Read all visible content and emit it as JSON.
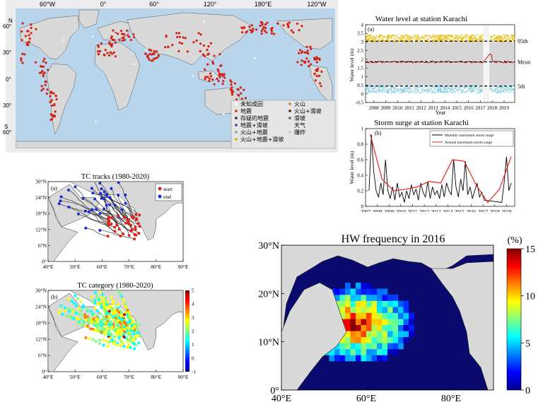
{
  "colors": {
    "ocean": "#b9d5ec",
    "land": "#d9d9d9",
    "dot": "#d62012",
    "line95": "#e8c21c",
    "line5": "#8fd2e4",
    "mean": "#c0191e",
    "annual": "#e0271c"
  },
  "world_map": {
    "top_ticks": [
      "60°W",
      "0°",
      "60°",
      "120°",
      "180°E",
      "120°W"
    ],
    "left_ticks": [
      "60°",
      "30°",
      "0°",
      "30°",
      "60°"
    ],
    "n_label": "N",
    "s_label": "S",
    "legend": [
      {
        "label": "未知成因",
        "color": "#f4f4f4"
      },
      {
        "label": "地震",
        "color": "#e0201a"
      },
      {
        "label": "存疑的地震",
        "color": "#2a2a2a"
      },
      {
        "label": "地震+滑坡",
        "color": "#3b3b9a"
      },
      {
        "label": "火山+地震",
        "color": "#999999"
      },
      {
        "label": "火山+地震+滑坡",
        "color": "#c9b000"
      },
      {
        "label": "火山",
        "color": "#c77d2a"
      },
      {
        "label": "火山+滑坡",
        "color": "#4b1d05"
      },
      {
        "label": "滑坡",
        "color": "#5b5b5b"
      },
      {
        "label": "天气",
        "color": "#f6d6d6"
      },
      {
        "label": "爆炸",
        "color": "#c7c7c7"
      }
    ]
  },
  "panels": {
    "water_title": "Water level at station Karachi",
    "surge_title": "Storm surge at station Karachi",
    "tc_tracks_title": "TC tracks (1980-2020)",
    "tc_cat_title": "TC category (1980-2020)",
    "hw_title": "HW frequency in 2016",
    "hw_unit": "(%)",
    "label_a": "(a)",
    "label_b": "(b)",
    "tc_legend_start": "start",
    "tc_legend_end": "end"
  },
  "chart_data": [
    {
      "type": "scatter",
      "title": "Water level at station Karachi",
      "xlabel": "Year",
      "ylabel": "Water level (m)",
      "x_ticks": [
        "2008",
        "2009",
        "2010",
        "2011",
        "2012",
        "2013",
        "2014",
        "2015",
        "2016",
        "2017",
        "2018",
        "2019"
      ],
      "y_ticks": [
        "-0.5",
        "0",
        "0.5",
        "1",
        "1.5",
        "2",
        "2.5",
        "3",
        "3.5",
        "4"
      ],
      "xlim": [
        2007.3,
        2019.9
      ],
      "ylim": [
        -0.5,
        4
      ],
      "reference_lines": [
        {
          "name": "95th",
          "value": 3.05
        },
        {
          "name": "Mean",
          "value": 1.85
        },
        {
          "name": "5th",
          "value": 0.45
        }
      ],
      "gap": [
        2017.25,
        2017.75
      ]
    },
    {
      "type": "line",
      "title": "Storm surge at station Karachi",
      "ylabel": "Water level (m)",
      "x_ticks": [
        "2007",
        "2008",
        "2009",
        "2010",
        "2011",
        "2012",
        "2013",
        "2014",
        "2015",
        "2016",
        "2017",
        "2018",
        "2019"
      ],
      "y_ticks": [
        "0",
        "0.2",
        "0.4",
        "0.6",
        "0.8",
        "1"
      ],
      "xlim": [
        2007,
        2019.7
      ],
      "ylim": [
        0,
        1
      ],
      "series": [
        {
          "name": "Monthly maximum storm surge",
          "x": [
            2007.3,
            2007.5,
            2007.7,
            2007.9,
            2008.1,
            2008.3,
            2008.5,
            2008.7,
            2008.9,
            2009.1,
            2009.3,
            2009.5,
            2009.7,
            2009.9,
            2010.1,
            2010.3,
            2010.5,
            2010.7,
            2010.9,
            2011.1,
            2011.3,
            2011.5,
            2011.7,
            2011.9,
            2012.1,
            2012.3,
            2012.5,
            2012.7,
            2012.9,
            2013.1,
            2013.3,
            2013.5,
            2013.7,
            2013.9,
            2014.1,
            2014.3,
            2014.5,
            2014.7,
            2014.9,
            2015.1,
            2015.3,
            2015.5,
            2015.7,
            2015.9,
            2016.1,
            2016.3,
            2016.5,
            2016.7,
            2016.9,
            2017.1,
            2018.6,
            2018.8,
            2019.0,
            2019.2,
            2019.4
          ],
          "values": [
            0.2,
            0.92,
            0.45,
            0.2,
            0.12,
            0.3,
            0.15,
            0.6,
            0.2,
            0.1,
            0.25,
            0.08,
            0.3,
            0.12,
            0.18,
            0.05,
            0.2,
            0.1,
            0.28,
            0.15,
            0.22,
            0.08,
            0.3,
            0.18,
            0.12,
            0.32,
            0.1,
            0.25,
            0.15,
            0.2,
            0.1,
            0.28,
            0.12,
            0.3,
            0.2,
            0.15,
            0.6,
            0.25,
            0.12,
            0.35,
            0.2,
            0.58,
            0.15,
            0.25,
            0.1,
            0.2,
            0.3,
            0.12,
            0.18,
            0.08,
            0.05,
            0.3,
            0.64,
            0.2,
            0.3
          ]
        },
        {
          "name": "Annual maximum storm surge",
          "x": [
            2007.4,
            2008.4,
            2009.4,
            2010.4,
            2011.4,
            2012.4,
            2013.4,
            2014.4,
            2015.4,
            2016.4,
            2017.4,
            2018.4,
            2019.4
          ],
          "values": [
            0.93,
            0.35,
            0.2,
            0.22,
            0.25,
            0.32,
            0.3,
            0.6,
            0.58,
            0.28,
            0.05,
            0.22,
            0.64
          ]
        }
      ]
    },
    {
      "type": "scatter",
      "title": "TC tracks (1980-2020)",
      "x_ticks": [
        "40°E",
        "50°E",
        "60°E",
        "70°E",
        "80°E",
        "90°E"
      ],
      "y_ticks": [
        "0°",
        "6°N",
        "12°N",
        "18°N",
        "24°N",
        "30°N"
      ],
      "xlim": [
        40,
        90
      ],
      "ylim": [
        0,
        30
      ],
      "series": [
        {
          "name": "start"
        },
        {
          "name": "end"
        }
      ]
    },
    {
      "type": "scatter",
      "title": "TC category (1980-2020)",
      "x_ticks": [
        "40°E",
        "50°E",
        "60°E",
        "70°E",
        "80°E",
        "90°E"
      ],
      "y_ticks": [
        "0°",
        "6°N",
        "12°N",
        "18°N",
        "24°N",
        "30°N"
      ],
      "colorbar_ticks": [
        "-1",
        "0",
        "1",
        "2",
        "3",
        "4",
        "5"
      ],
      "xlim": [
        40,
        90
      ],
      "ylim": [
        0,
        30
      ]
    },
    {
      "type": "heatmap",
      "title": "HW frequency in 2016",
      "x_ticks": [
        "40°E",
        "60°E",
        "80°E"
      ],
      "y_ticks": [
        "0°",
        "10°N",
        "20°N",
        "30°N"
      ],
      "colorbar_ticks": [
        "0",
        "5",
        "10",
        "15"
      ],
      "unit": "(%)",
      "xlim": [
        40,
        90
      ],
      "ylim": [
        0,
        30
      ],
      "clim": [
        0,
        15
      ]
    }
  ]
}
